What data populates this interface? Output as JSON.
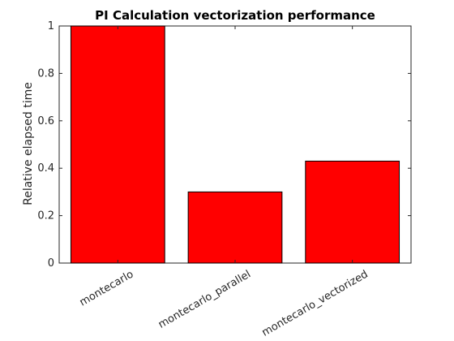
{
  "chart_data": {
    "type": "bar",
    "title": "PI Calculation vectorization performance",
    "xlabel": "",
    "ylabel": "Relative elapsed time",
    "categories": [
      "montecarlo",
      "montecarlo_parallel",
      "montecarlo_vectorized"
    ],
    "values": [
      1.0,
      0.3,
      0.43
    ],
    "ylim": [
      0,
      1
    ],
    "yticks": [
      "0",
      "0.2",
      "0.4",
      "0.6",
      "0.8",
      "1"
    ],
    "bar_color": "#ff0000",
    "grid": false,
    "legend": "none"
  }
}
